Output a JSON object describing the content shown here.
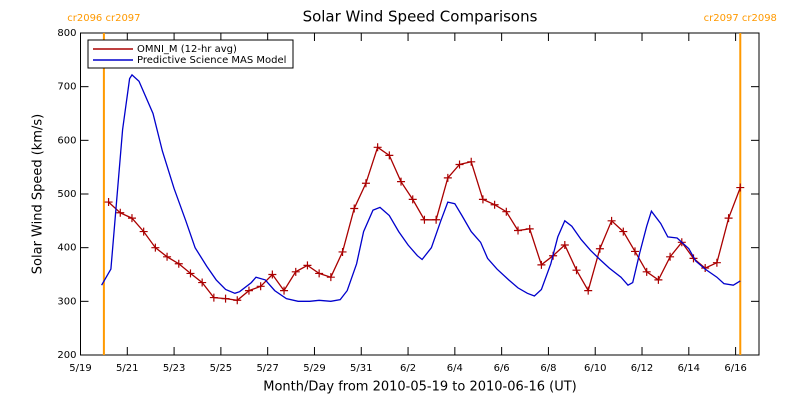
{
  "chart_data": {
    "type": "line",
    "title": "Solar Wind Speed Comparisons",
    "xlabel": "Month/Day from 2010-05-19 to 2010-06-16 (UT)",
    "ylabel": "Solar Wind Speed (km/s)",
    "xlim": [
      0,
      29
    ],
    "ylim": [
      200,
      800
    ],
    "xticks": [
      {
        "value": 0,
        "label": "5/19"
      },
      {
        "value": 2,
        "label": "5/21"
      },
      {
        "value": 4,
        "label": "5/23"
      },
      {
        "value": 6,
        "label": "5/25"
      },
      {
        "value": 8,
        "label": "5/27"
      },
      {
        "value": 10,
        "label": "5/29"
      },
      {
        "value": 12,
        "label": "5/31"
      },
      {
        "value": 14,
        "label": "6/2"
      },
      {
        "value": 16,
        "label": "6/4"
      },
      {
        "value": 18,
        "label": "6/6"
      },
      {
        "value": 20,
        "label": "6/8"
      },
      {
        "value": 22,
        "label": "6/10"
      },
      {
        "value": 24,
        "label": "6/12"
      },
      {
        "value": 26,
        "label": "6/14"
      },
      {
        "value": 28,
        "label": "6/16"
      }
    ],
    "yticks": [
      200,
      300,
      400,
      500,
      600,
      700,
      800
    ],
    "legend": "upper left",
    "annotations": [
      {
        "x": 1.0,
        "label": "cr2096 cr2097",
        "color": "#ff9900"
      },
      {
        "x": 28.2,
        "label": "cr2097 cr2098",
        "color": "#ff9900"
      }
    ],
    "series": [
      {
        "name": "OMNI_M (12-hr avg)",
        "color": "#aa0000",
        "markers": true,
        "x": [
          1.2,
          1.7,
          2.2,
          2.7,
          3.2,
          3.7,
          4.2,
          4.7,
          5.2,
          5.7,
          6.2,
          6.7,
          7.2,
          7.7,
          8.2,
          8.7,
          9.2,
          9.7,
          10.2,
          10.7,
          11.2,
          11.7,
          12.2,
          12.7,
          13.2,
          13.7,
          14.2,
          14.7,
          15.2,
          15.7,
          16.2,
          16.7,
          17.2,
          17.7,
          18.2,
          18.7,
          19.2,
          19.7,
          20.2,
          20.7,
          21.2,
          21.7,
          22.2,
          22.7,
          23.2,
          23.7,
          24.2,
          24.7,
          25.2,
          25.7,
          26.2,
          26.7,
          27.2,
          27.7,
          28.2
        ],
        "values": [
          485,
          465,
          455,
          430,
          400,
          383,
          370,
          352,
          335,
          307,
          305,
          302,
          320,
          328,
          350,
          320,
          355,
          367,
          352,
          345,
          392,
          473,
          520,
          587,
          572,
          523,
          490,
          452,
          452,
          530,
          555,
          560,
          490,
          480,
          467,
          432,
          435,
          368,
          385,
          405,
          358,
          320,
          398,
          450,
          430,
          393,
          355,
          340,
          383,
          410,
          380,
          362,
          372,
          455,
          512
        ]
      },
      {
        "name": "Predictive Science MAS Model",
        "color": "#0000cc",
        "markers": false,
        "x": [
          0.9,
          1.3,
          1.8,
          2.1,
          2.2,
          2.5,
          3.1,
          3.5,
          4.0,
          4.5,
          4.9,
          5.4,
          5.8,
          6.2,
          6.6,
          6.8,
          7.3,
          7.5,
          7.9,
          8.3,
          8.8,
          9.3,
          9.8,
          10.2,
          10.7,
          11.1,
          11.4,
          11.8,
          12.1,
          12.5,
          12.8,
          13.2,
          13.6,
          14.0,
          14.4,
          14.6,
          15.0,
          15.4,
          15.7,
          16.0,
          16.3,
          16.7,
          17.1,
          17.4,
          17.8,
          18.3,
          18.7,
          19.1,
          19.4,
          19.7,
          20.1,
          20.4,
          20.7,
          21.0,
          21.4,
          21.8,
          22.2,
          22.6,
          23.1,
          23.4,
          23.6,
          23.9,
          24.2,
          24.4,
          24.8,
          25.1,
          25.5,
          26.0,
          26.3,
          26.7,
          27.2,
          27.5,
          27.9,
          28.2
        ],
        "values": [
          330,
          360,
          620,
          715,
          722,
          710,
          650,
          580,
          510,
          450,
          400,
          365,
          340,
          322,
          315,
          318,
          335,
          345,
          340,
          320,
          305,
          300,
          300,
          302,
          300,
          303,
          320,
          370,
          430,
          470,
          475,
          460,
          430,
          405,
          385,
          378,
          400,
          450,
          485,
          482,
          460,
          430,
          410,
          380,
          360,
          340,
          325,
          315,
          310,
          322,
          370,
          420,
          450,
          440,
          415,
          395,
          378,
          362,
          345,
          330,
          335,
          390,
          440,
          468,
          445,
          420,
          418,
          398,
          375,
          360,
          345,
          333,
          330,
          338
        ]
      }
    ]
  }
}
